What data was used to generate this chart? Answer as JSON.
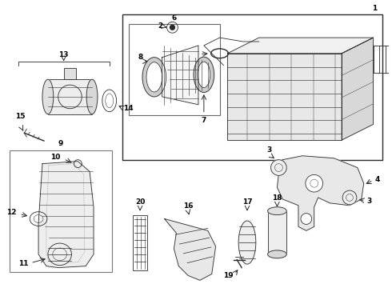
{
  "bg_color": "#ffffff",
  "lc": "#2a2a2a",
  "fig_width": 4.9,
  "fig_height": 3.6,
  "dpi": 100,
  "fs": 6.5
}
